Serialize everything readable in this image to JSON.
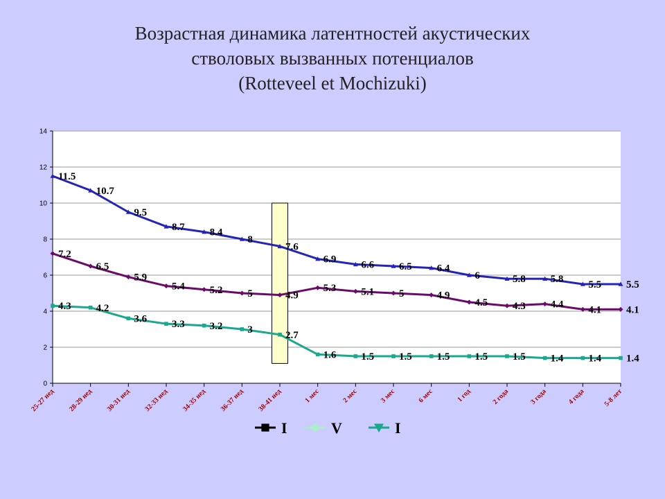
{
  "title": {
    "line1": "Возрастная динамика латентностей акустических",
    "line2": "стволовых вызванных потенциалов",
    "line3": "(Rotteveel et Mochizuki)"
  },
  "chart_data": {
    "type": "line",
    "title": "Возрастная динамика латентностей акустических стволовых вызванных потенциалов (Rotteveel et Mochizuki)",
    "categories": [
      "25-27 нед",
      "28-29 нед",
      "30-31 нед",
      "32-33 нед",
      "34-35 нед",
      "36-37 нед",
      "38-41 нед",
      "1 мес",
      "2 мес",
      "3 мес",
      "6 мес",
      "1 год",
      "2 года",
      "3 года",
      "4 года",
      "5-8 лет"
    ],
    "ylim": [
      0,
      14
    ],
    "yticks": [
      0,
      2,
      4,
      6,
      8,
      10,
      12,
      14
    ],
    "grid": "horizontal",
    "legend_position": "bottom",
    "highlight_category_index": 6,
    "series": [
      {
        "values": [
          11.5,
          10.7,
          9.5,
          8.7,
          8.4,
          8,
          7.6,
          6.9,
          6.6,
          6.5,
          6.4,
          6,
          5.8,
          5.8,
          5.5,
          5.5
        ],
        "color": "#2424b8",
        "marker": "triangle"
      },
      {
        "values": [
          7.2,
          6.5,
          5.9,
          5.4,
          5.2,
          5,
          4.9,
          5.3,
          5.1,
          5,
          4.9,
          4.5,
          4.3,
          4.4,
          4.1,
          4.1
        ],
        "color": "#6a0a6a",
        "marker": "diamond"
      },
      {
        "values": [
          4.3,
          4.2,
          3.6,
          3.3,
          3.2,
          3,
          2.7,
          1.6,
          1.5,
          1.5,
          1.5,
          1.5,
          1.5,
          1.4,
          1.4,
          1.4
        ],
        "color": "#1aa88e",
        "marker": "square"
      }
    ],
    "legend": [
      {
        "name": "I",
        "color": "#000000",
        "marker": "square"
      },
      {
        "name": "V",
        "color": "#aaeecc",
        "marker": "diamond"
      },
      {
        "name": "I",
        "color": "#1aa88e",
        "marker": "triangle-down"
      }
    ]
  }
}
